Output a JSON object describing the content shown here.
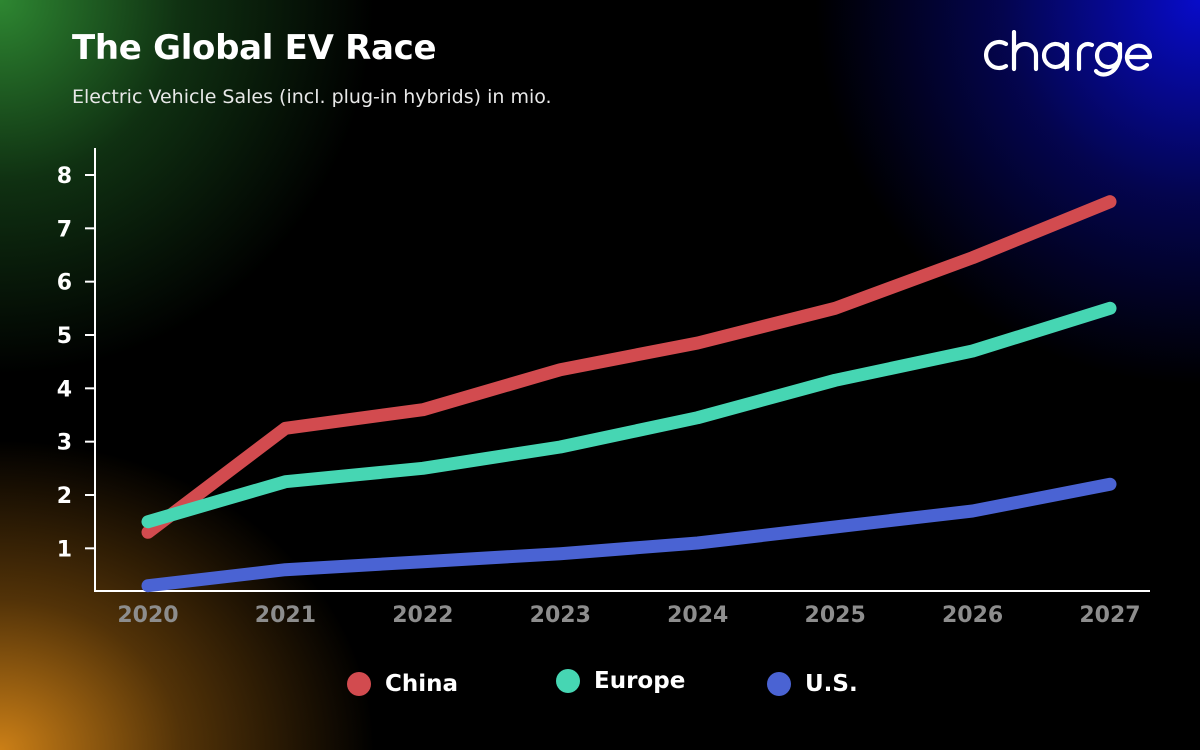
{
  "title": "The Global EV Race",
  "subtitle": "Electric Vehicle Sales (incl. plug-in hybrids) in mio.",
  "logo": {
    "text": "charge",
    "color": "#ffffff"
  },
  "chart_data": {
    "type": "line",
    "title": "The Global EV Race",
    "subtitle": "Electric Vehicle Sales (incl. plug-in hybrids) in mio.",
    "xlabel": "",
    "ylabel": "",
    "categories": [
      "2020",
      "2021",
      "2022",
      "2023",
      "2024",
      "2025",
      "2026",
      "2027"
    ],
    "yticks": [
      1,
      2,
      3,
      4,
      5,
      6,
      7,
      8
    ],
    "ylim": [
      0.2,
      8.6
    ],
    "grid": false,
    "legend_position": "bottom",
    "series": [
      {
        "name": "China",
        "color": "#d24b4f",
        "values": [
          1.3,
          3.25,
          3.6,
          4.35,
          4.85,
          5.5,
          6.45,
          7.5
        ]
      },
      {
        "name": "Europe",
        "color": "#46d6b3",
        "values": [
          1.5,
          2.25,
          2.5,
          2.9,
          3.45,
          4.15,
          4.7,
          5.5
        ]
      },
      {
        "name": "U.S.",
        "color": "#4a63d3",
        "values": [
          0.3,
          0.6,
          0.75,
          0.9,
          1.1,
          1.4,
          1.7,
          2.2
        ]
      }
    ]
  }
}
